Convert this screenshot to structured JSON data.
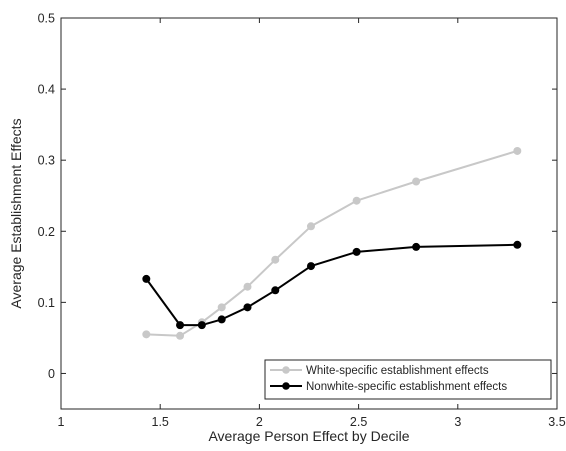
{
  "chart_data": {
    "type": "line",
    "title": "",
    "xlabel": "Average Person Effect by Decile",
    "ylabel": "Average Establishment Effects",
    "xlim": [
      1,
      3.5
    ],
    "ylim": [
      -0.05,
      0.5
    ],
    "xticks": [
      1,
      1.5,
      2,
      2.5,
      3,
      3.5
    ],
    "xtick_labels": [
      "1",
      "1.5",
      "2",
      "2.5",
      "3",
      "3.5"
    ],
    "yticks": [
      0,
      0.1,
      0.2,
      0.3,
      0.4,
      0.5
    ],
    "ytick_labels": [
      "0",
      "0.1",
      "0.2",
      "0.3",
      "0.4",
      "0.5"
    ],
    "grid": false,
    "legend_position": "bottom-right",
    "series": [
      {
        "name": "White-specific establishment effects",
        "color": "#c8c8c8",
        "x": [
          1.43,
          1.6,
          1.71,
          1.81,
          1.94,
          2.08,
          2.26,
          2.49,
          2.79,
          3.3
        ],
        "y": [
          0.055,
          0.053,
          0.072,
          0.093,
          0.122,
          0.16,
          0.207,
          0.243,
          0.27,
          0.313
        ]
      },
      {
        "name": "Nonwhite-specific establishment effects",
        "color": "#000000",
        "x": [
          1.43,
          1.6,
          1.71,
          1.81,
          1.94,
          2.08,
          2.26,
          2.49,
          2.79,
          3.3
        ],
        "y": [
          0.133,
          0.068,
          0.068,
          0.076,
          0.093,
          0.117,
          0.151,
          0.171,
          0.178,
          0.181
        ]
      }
    ]
  }
}
